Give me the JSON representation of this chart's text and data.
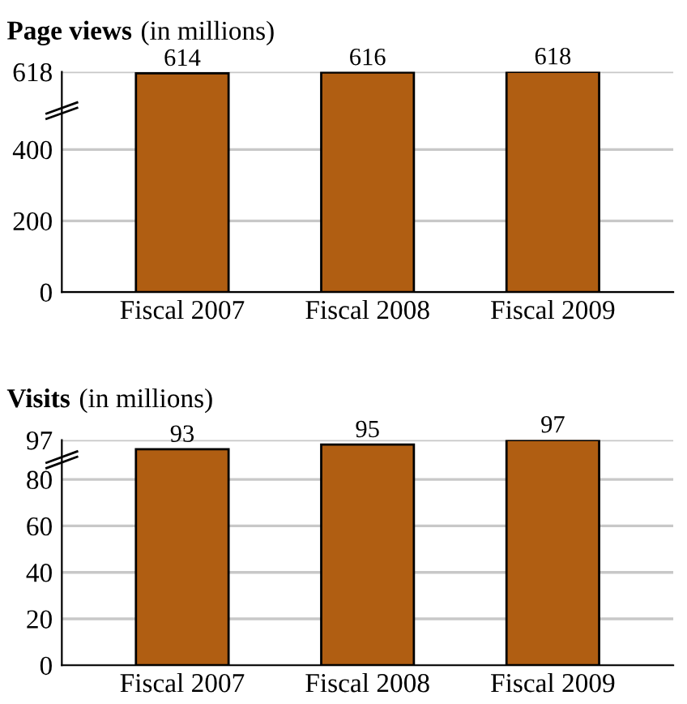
{
  "chart_data": [
    {
      "type": "bar",
      "title": "Page views",
      "subtitle": "(in millions)",
      "categories": [
        "Fiscal 2007",
        "Fiscal 2008",
        "Fiscal 2009"
      ],
      "values": [
        614,
        616,
        618
      ],
      "color": "#b05e12",
      "ylim": [
        0,
        618
      ],
      "yticks": [
        0,
        200,
        400,
        618
      ],
      "grid": "y",
      "data_labels": true
    },
    {
      "type": "bar",
      "title": "Visits",
      "subtitle": "(in millions)",
      "categories": [
        "Fiscal 2007",
        "Fiscal 2008",
        "Fiscal 2009"
      ],
      "values": [
        93,
        95,
        97
      ],
      "color": "#b05e12",
      "ylim": [
        0,
        97
      ],
      "yticks": [
        0,
        20,
        40,
        60,
        80,
        97
      ],
      "grid": "y",
      "data_labels": true
    }
  ]
}
